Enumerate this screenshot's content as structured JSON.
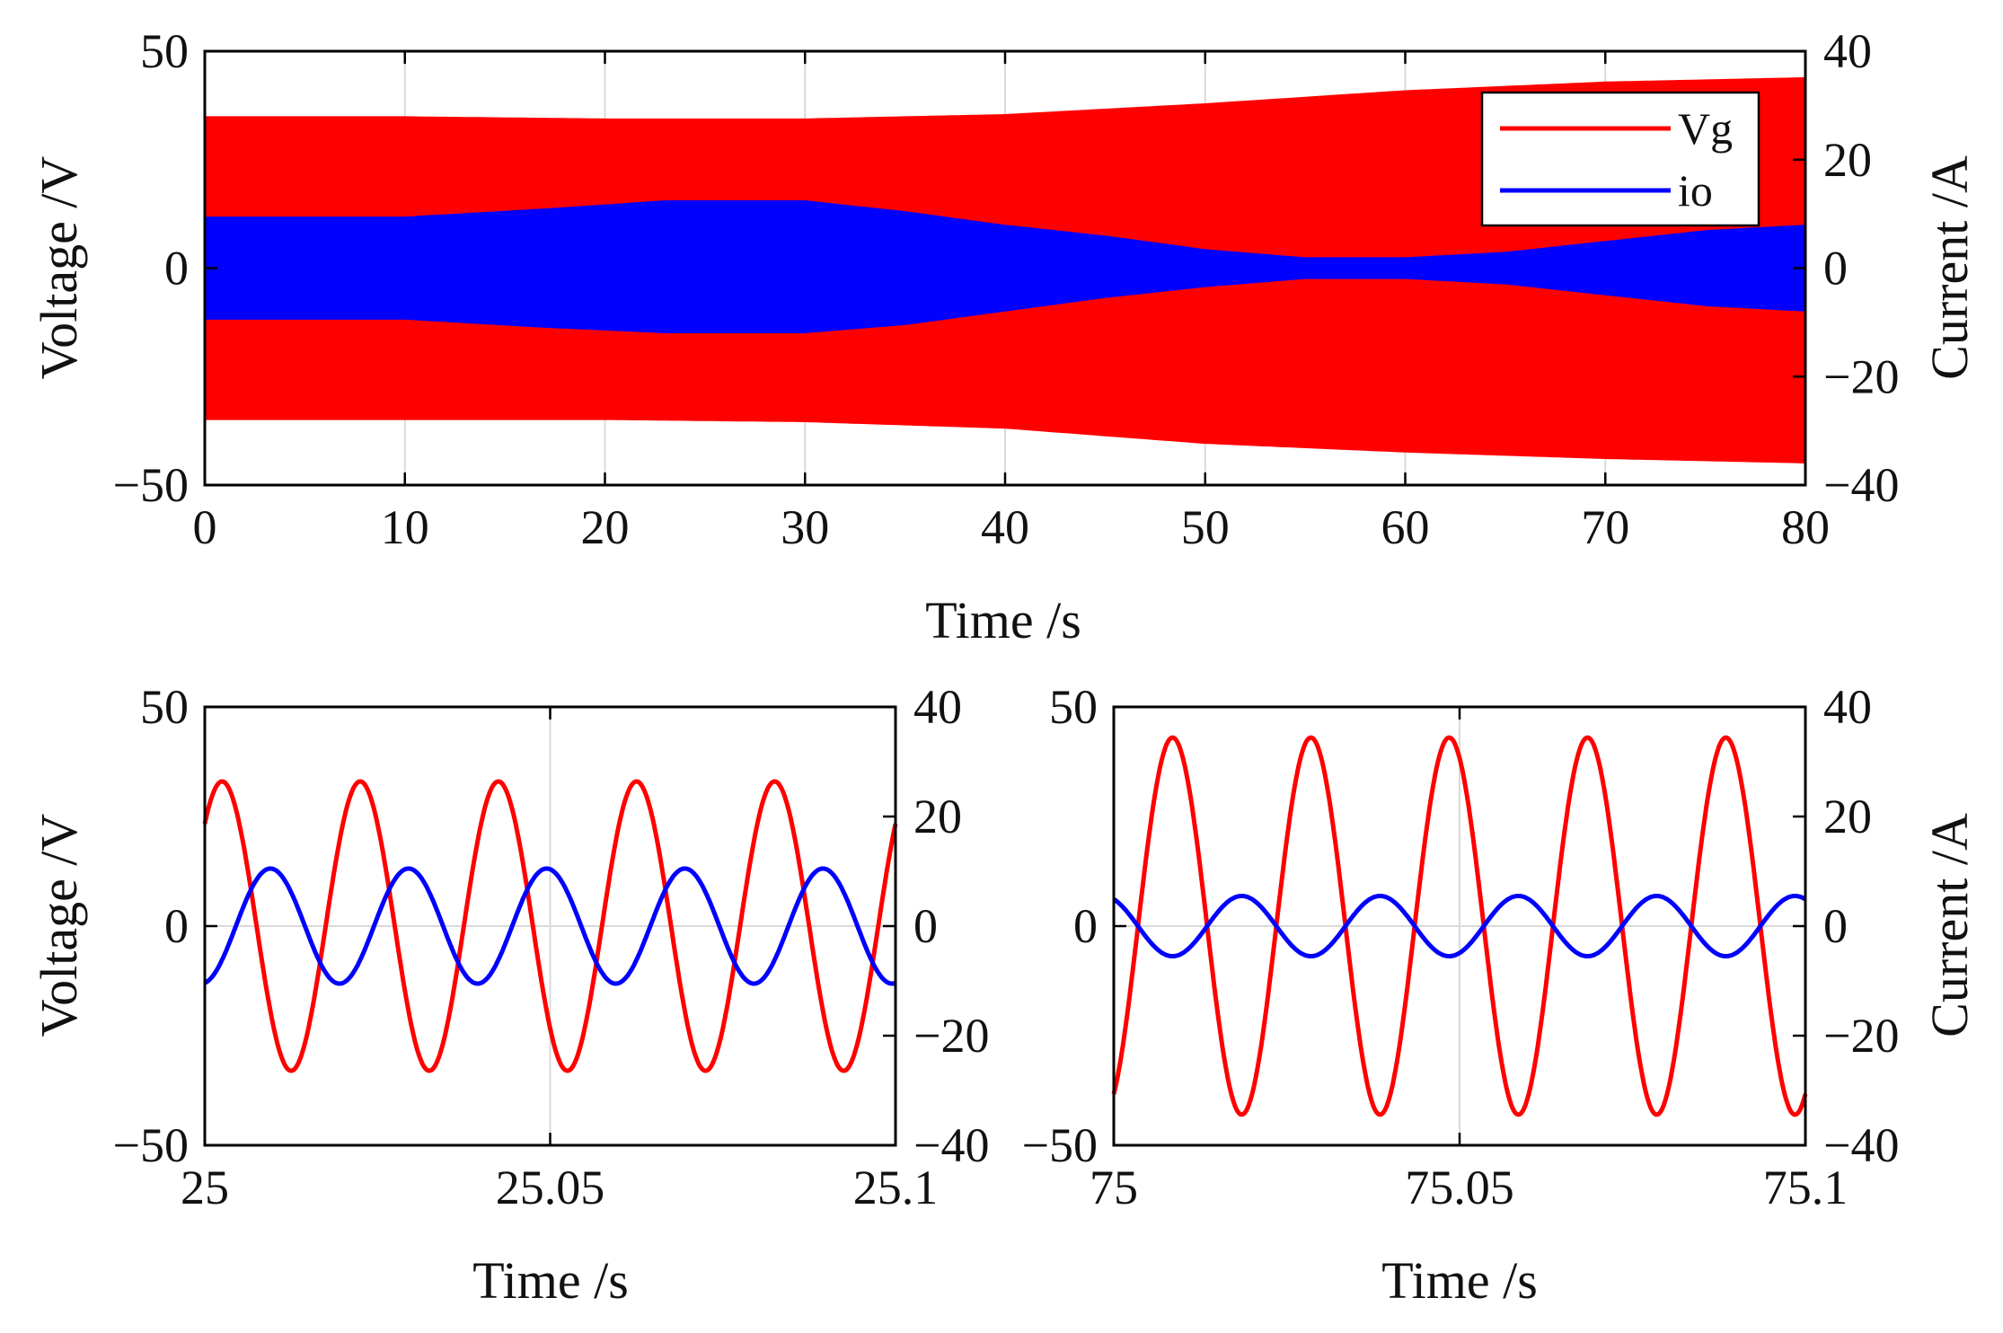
{
  "colors": {
    "vg": "#ff0000",
    "io": "#0000ff",
    "axis": "#000000",
    "grid": "#d9d9d9"
  },
  "chart_data": [
    {
      "id": "overview",
      "type": "line",
      "title": "",
      "xlabel": "Time /s",
      "ylabel_left": "Voltage /V",
      "ylabel_right": "Current /A",
      "xlim": [
        0,
        80
      ],
      "ylim_left": [
        -50,
        50
      ],
      "ylim_right": [
        -40,
        40
      ],
      "xticks": [
        "0",
        "10",
        "20",
        "30",
        "40",
        "50",
        "60",
        "70",
        "80"
      ],
      "xtick_values": [
        0,
        10,
        20,
        30,
        40,
        50,
        60,
        70,
        80
      ],
      "yticks_left": [
        "50",
        "0",
        "−50"
      ],
      "ytick_values_left": [
        50,
        0,
        -50
      ],
      "yticks_right": [
        "40",
        "20",
        "0",
        "−20",
        "−40"
      ],
      "ytick_values_right": [
        40,
        20,
        0,
        -20,
        -40
      ],
      "grid": true,
      "legend": {
        "position": "top-right",
        "entries": [
          "Vg",
          "io"
        ]
      },
      "series": [
        {
          "name": "Vg",
          "axis": "left",
          "kind": "envelope",
          "t": [
            0,
            10,
            20,
            30,
            40,
            50,
            60,
            70,
            80
          ],
          "upper": [
            35,
            35,
            34.5,
            34.5,
            35.5,
            38,
            41,
            43,
            44
          ],
          "lower": [
            -35,
            -35,
            -35,
            -35.5,
            -37,
            -40.5,
            -42.5,
            -44,
            -45
          ]
        },
        {
          "name": "io",
          "axis": "right",
          "kind": "envelope",
          "t": [
            0,
            10,
            17,
            23,
            30,
            35,
            40,
            45,
            50,
            55,
            60,
            65,
            70,
            75,
            80
          ],
          "upper": [
            9.5,
            9.5,
            11,
            12.5,
            12.5,
            10.5,
            8,
            6,
            3.5,
            2,
            2,
            3,
            5,
            7,
            8
          ],
          "lower": [
            -9.5,
            -9.5,
            -11,
            -12,
            -12,
            -10.5,
            -8,
            -5.5,
            -3.5,
            -2,
            -2,
            -3,
            -5,
            -7,
            -8
          ]
        }
      ]
    },
    {
      "id": "zoom-25",
      "type": "line",
      "xlabel": "Time /s",
      "ylabel_left": "Voltage /V",
      "ylabel_right": "",
      "xlim": [
        25,
        25.1
      ],
      "ylim_left": [
        -50,
        50
      ],
      "ylim_right": [
        -40,
        40
      ],
      "xticks": [
        "25",
        "25.05",
        "25.1"
      ],
      "xtick_values": [
        25,
        25.05,
        25.1
      ],
      "yticks_left": [
        "50",
        "0",
        "−50"
      ],
      "ytick_values_left": [
        50,
        0,
        -50
      ],
      "yticks_right": [
        "40",
        "20",
        "0",
        "−20",
        "−40"
      ],
      "ytick_values_right": [
        40,
        20,
        0,
        -20,
        -40
      ],
      "grid": true,
      "series": [
        {
          "name": "Vg",
          "axis": "left",
          "kind": "sine",
          "amplitude": 33,
          "frequency": 50,
          "t_peak": 25.0025
        },
        {
          "name": "io",
          "axis": "right",
          "kind": "sine",
          "amplitude": 10.5,
          "frequency": 50,
          "t_peak": 25.0095
        }
      ]
    },
    {
      "id": "zoom-75",
      "type": "line",
      "xlabel": "Time /s",
      "ylabel_left": "",
      "ylabel_right": "Current /A",
      "xlim": [
        75,
        75.1
      ],
      "ylim_left": [
        -50,
        50
      ],
      "ylim_right": [
        -40,
        40
      ],
      "xticks": [
        "75",
        "75.05",
        "75.1"
      ],
      "xtick_values": [
        75,
        75.05,
        75.1
      ],
      "yticks_left": [
        "50",
        "0",
        "−50"
      ],
      "ytick_values_left": [
        50,
        0,
        -50
      ],
      "yticks_right": [
        "40",
        "20",
        "0",
        "−20",
        "−40"
      ],
      "ytick_values_right": [
        40,
        20,
        0,
        -20,
        -40
      ],
      "grid": true,
      "series": [
        {
          "name": "Vg",
          "axis": "left",
          "kind": "sine",
          "amplitude": 43,
          "frequency": 50,
          "t_peak": 75.0085
        },
        {
          "name": "io",
          "axis": "right",
          "kind": "sine",
          "amplitude": 5.5,
          "frequency": 50,
          "t_peak": 75.0185
        }
      ]
    }
  ]
}
